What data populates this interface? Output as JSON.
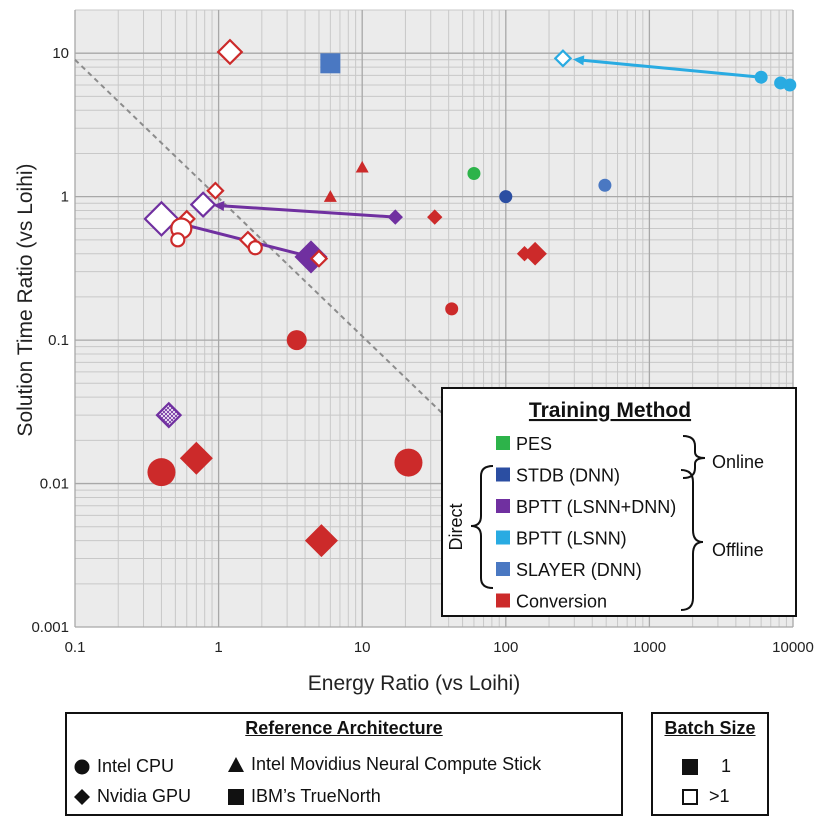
{
  "chart_data": {
    "type": "scatter",
    "xlabel": "Energy Ratio (vs Loihi)",
    "ylabel": "Solution Time Ratio (vs Loihi)",
    "x_scale": "log",
    "y_scale": "log",
    "xlim": [
      0.1,
      10000
    ],
    "ylim": [
      0.001,
      20
    ],
    "x_ticks": [
      "0.1",
      "1",
      "10",
      "100",
      "1000",
      "10000"
    ],
    "y_ticks": [
      "0.001",
      "0.01",
      "0.1",
      "1",
      "10"
    ],
    "grid": true,
    "reference_line": {
      "style": "dashed",
      "from": [
        0.1,
        9
      ],
      "to": [
        40,
        0.028
      ]
    },
    "colors": {
      "PES": "#2db34a",
      "STDB (DNN)": "#2b4ea2",
      "BPTT (LSNN+DNN)": "#7030a0",
      "BPTT (LSNN)": "#29abe2",
      "SLAYER (DNN)": "#4a78c2",
      "Conversion": "#cc2a2a"
    },
    "points": [
      {
        "method": "PES",
        "shape": "circle",
        "filled": true,
        "x": 60,
        "y": 1.45,
        "size": "s"
      },
      {
        "method": "STDB (DNN)",
        "shape": "circle",
        "filled": true,
        "x": 100,
        "y": 1.0,
        "size": "s"
      },
      {
        "method": "SLAYER (DNN)",
        "shape": "circle",
        "filled": true,
        "x": 490,
        "y": 1.2,
        "size": "s"
      },
      {
        "method": "SLAYER (DNN)",
        "shape": "square",
        "filled": true,
        "x": 6,
        "y": 8.5,
        "size": "m"
      },
      {
        "method": "BPTT (LSNN)",
        "shape": "circle",
        "filled": true,
        "x": 6000,
        "y": 6.8,
        "size": "s"
      },
      {
        "method": "BPTT (LSNN)",
        "shape": "circle",
        "filled": true,
        "x": 8200,
        "y": 6.2,
        "size": "s"
      },
      {
        "method": "BPTT (LSNN)",
        "shape": "circle",
        "filled": true,
        "x": 9500,
        "y": 6.0,
        "size": "s"
      },
      {
        "method": "BPTT (LSNN)",
        "shape": "diamond",
        "filled": false,
        "x": 250,
        "y": 9.2,
        "size": "s"
      },
      {
        "method": "BPTT (LSNN+DNN)",
        "shape": "diamond",
        "filled": true,
        "x": 17,
        "y": 0.72,
        "size": "s"
      },
      {
        "method": "BPTT (LSNN+DNN)",
        "shape": "diamond",
        "filled": true,
        "x": 4.4,
        "y": 0.38,
        "size": "l"
      },
      {
        "method": "BPTT (LSNN+DNN)",
        "shape": "diamond",
        "filled": false,
        "x": 0.78,
        "y": 0.88,
        "size": "m"
      },
      {
        "method": "BPTT (LSNN+DNN)",
        "shape": "diamond",
        "filled": false,
        "x": 0.4,
        "y": 0.7,
        "size": "l"
      },
      {
        "method": "BPTT (LSNN+DNN)",
        "shape": "diamond",
        "filled": false,
        "x": 0.45,
        "y": 0.03,
        "size": "m",
        "hatched": true
      },
      {
        "method": "Conversion",
        "shape": "diamond",
        "filled": false,
        "x": 1.2,
        "y": 10.2,
        "size": "m"
      },
      {
        "method": "Conversion",
        "shape": "triangle",
        "filled": true,
        "x": 10,
        "y": 1.6,
        "size": "s"
      },
      {
        "method": "Conversion",
        "shape": "triangle",
        "filled": true,
        "x": 6,
        "y": 1.0,
        "size": "s"
      },
      {
        "method": "Conversion",
        "shape": "diamond",
        "filled": true,
        "x": 32,
        "y": 0.72,
        "size": "s"
      },
      {
        "method": "Conversion",
        "shape": "diamond",
        "filled": true,
        "x": 135,
        "y": 0.4,
        "size": "s"
      },
      {
        "method": "Conversion",
        "shape": "diamond",
        "filled": true,
        "x": 160,
        "y": 0.4,
        "size": "m"
      },
      {
        "method": "Conversion",
        "shape": "circle",
        "filled": true,
        "x": 42,
        "y": 0.165,
        "size": "s"
      },
      {
        "method": "Conversion",
        "shape": "circle",
        "filled": true,
        "x": 3.5,
        "y": 0.1,
        "size": "m"
      },
      {
        "method": "Conversion",
        "shape": "circle",
        "filled": true,
        "x": 0.4,
        "y": 0.012,
        "size": "l"
      },
      {
        "method": "Conversion",
        "shape": "diamond",
        "filled": true,
        "x": 0.7,
        "y": 0.015,
        "size": "l"
      },
      {
        "method": "Conversion",
        "shape": "circle",
        "filled": true,
        "x": 21,
        "y": 0.014,
        "size": "l"
      },
      {
        "method": "Conversion",
        "shape": "diamond",
        "filled": true,
        "x": 5.2,
        "y": 0.004,
        "size": "l"
      },
      {
        "method": "Conversion",
        "shape": "diamond",
        "filled": false,
        "x": 0.95,
        "y": 1.1,
        "size": "s"
      },
      {
        "method": "Conversion",
        "shape": "diamond",
        "filled": false,
        "x": 0.6,
        "y": 0.7,
        "size": "s"
      },
      {
        "method": "Conversion",
        "shape": "circle",
        "filled": false,
        "x": 0.55,
        "y": 0.6,
        "size": "m"
      },
      {
        "method": "Conversion",
        "shape": "circle",
        "filled": false,
        "x": 0.52,
        "y": 0.5,
        "size": "s"
      },
      {
        "method": "Conversion",
        "shape": "diamond",
        "filled": false,
        "x": 1.6,
        "y": 0.5,
        "size": "s"
      },
      {
        "method": "Conversion",
        "shape": "circle",
        "filled": false,
        "x": 1.8,
        "y": 0.44,
        "size": "s"
      },
      {
        "method": "Conversion",
        "shape": "diamond",
        "filled": false,
        "x": 5,
        "y": 0.37,
        "size": "s"
      }
    ],
    "arrows": [
      {
        "method": "BPTT (LSNN)",
        "from": [
          6000,
          6.8
        ],
        "to": [
          250,
          9.2
        ]
      },
      {
        "method": "BPTT (LSNN+DNN)",
        "from": [
          17,
          0.72
        ],
        "to": [
          0.78,
          0.88
        ]
      },
      {
        "method": "BPTT (LSNN+DNN)",
        "from": [
          4.4,
          0.38
        ],
        "to": [
          0.4,
          0.7
        ]
      }
    ],
    "training_legend": {
      "title": "Training Method",
      "placement": "bottom-right",
      "items": [
        "PES",
        "STDB (DNN)",
        "BPTT (LSNN+DNN)",
        "BPTT (LSNN)",
        "SLAYER (DNN)",
        "Conversion"
      ],
      "group_labels": {
        "online": "Online",
        "offline": "Offline",
        "direct": "Direct"
      }
    }
  },
  "reference_legend": {
    "title": "Reference Architecture",
    "items": [
      {
        "shape": "circle",
        "label": "Intel CPU"
      },
      {
        "shape": "triangle",
        "label": "Intel Movidius Neural Compute Stick"
      },
      {
        "shape": "diamond",
        "label": "Nvidia GPU"
      },
      {
        "shape": "square",
        "label": "IBM’s TrueNorth"
      }
    ]
  },
  "batch_legend": {
    "title": "Batch Size",
    "items": [
      {
        "filled": true,
        "label": "1"
      },
      {
        "filled": false,
        "label": ">1"
      }
    ]
  }
}
